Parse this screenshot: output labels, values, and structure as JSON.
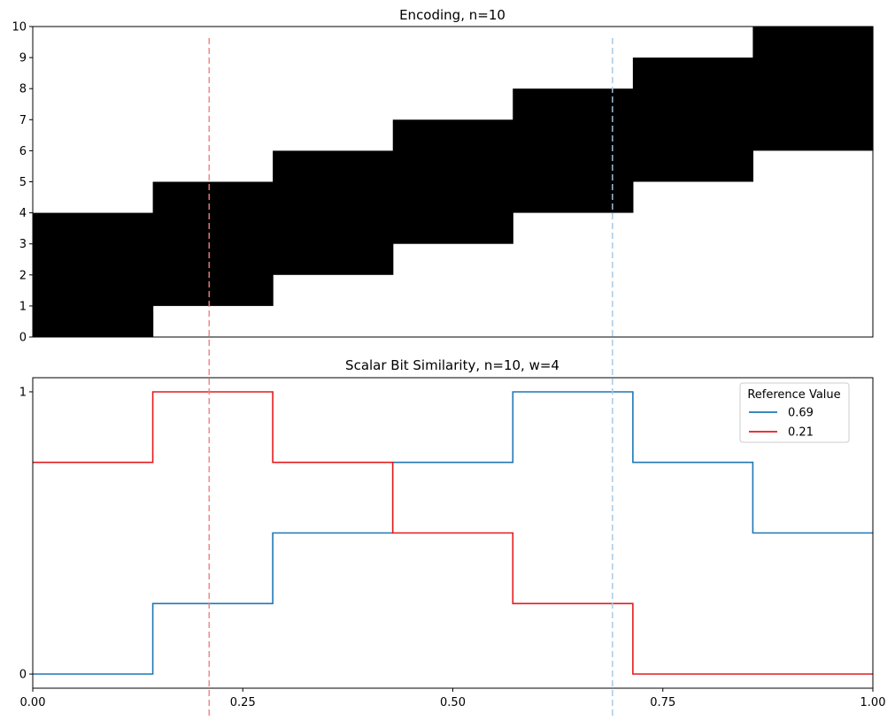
{
  "chart_data": [
    {
      "type": "heatmap",
      "title": "Encoding, n=10",
      "xlabel": "",
      "ylabel": "",
      "xlim": [
        0,
        1
      ],
      "ylim": [
        0,
        10
      ],
      "y_ticks": [
        "0",
        "1",
        "2",
        "3",
        "4",
        "5",
        "6",
        "7",
        "8",
        "9",
        "10"
      ],
      "x_ticks_visible": false,
      "n": 10,
      "w": 4,
      "active_bits_by_bucket": [
        {
          "x_range": [
            0.0,
            0.1429
          ],
          "bits_from": 0,
          "bits_to": 4
        },
        {
          "x_range": [
            0.1429,
            0.2857
          ],
          "bits_from": 1,
          "bits_to": 5
        },
        {
          "x_range": [
            0.2857,
            0.4286
          ],
          "bits_from": 2,
          "bits_to": 6
        },
        {
          "x_range": [
            0.4286,
            0.5714
          ],
          "bits_from": 3,
          "bits_to": 7
        },
        {
          "x_range": [
            0.5714,
            0.7143
          ],
          "bits_from": 4,
          "bits_to": 8
        },
        {
          "x_range": [
            0.7143,
            0.8571
          ],
          "bits_from": 5,
          "bits_to": 9
        },
        {
          "x_range": [
            0.8571,
            1.0
          ],
          "bits_from": 6,
          "bits_to": 10
        }
      ],
      "reference_lines": [
        {
          "x": 0.21,
          "color": "#f08080"
        },
        {
          "x": 0.69,
          "color": "#a6c8e0"
        }
      ]
    },
    {
      "type": "line",
      "title": "Scalar Bit Similarity, n=10, w=4",
      "xlabel": "",
      "ylabel": "",
      "xlim": [
        0,
        1
      ],
      "ylim": [
        -0.05,
        1.05
      ],
      "x_ticks": [
        "0.00",
        "0.25",
        "0.50",
        "0.75",
        "1.00"
      ],
      "y_ticks": [
        "0",
        "1"
      ],
      "legend": {
        "title": "Reference Value",
        "position": "top-right"
      },
      "series": [
        {
          "name": "0.69",
          "color": "#1f77b4",
          "x": [
            0.0,
            0.1429,
            0.1429,
            0.2857,
            0.2857,
            0.4286,
            0.4286,
            0.5714,
            0.5714,
            0.7143,
            0.7143,
            0.8571,
            0.8571,
            1.0
          ],
          "y": [
            0.0,
            0.0,
            0.25,
            0.25,
            0.5,
            0.5,
            0.75,
            0.75,
            1.0,
            1.0,
            0.75,
            0.75,
            0.5,
            0.5
          ]
        },
        {
          "name": "0.21",
          "color": "#e31a1c",
          "x": [
            0.0,
            0.1429,
            0.1429,
            0.2857,
            0.2857,
            0.4286,
            0.4286,
            0.5714,
            0.5714,
            0.7143,
            0.7143,
            1.0
          ],
          "y": [
            0.75,
            0.75,
            1.0,
            1.0,
            0.75,
            0.75,
            0.5,
            0.5,
            0.25,
            0.25,
            0.0,
            0.0
          ]
        }
      ],
      "reference_lines": [
        {
          "x": 0.21,
          "color": "#f08080"
        },
        {
          "x": 0.69,
          "color": "#a6c8e0"
        }
      ]
    }
  ]
}
